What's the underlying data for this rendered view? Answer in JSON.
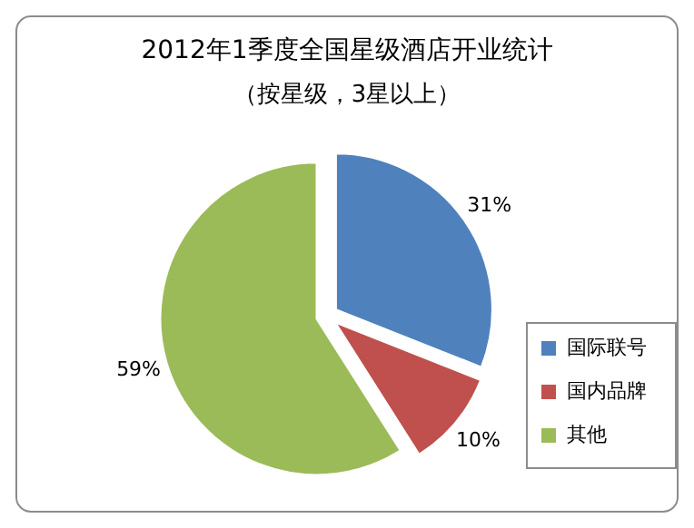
{
  "chart_data": {
    "type": "pie",
    "title": "2012年1季度全国星级酒店开业统计",
    "subtitle": "（按星级，3星以上）",
    "categories": [
      "国际联号",
      "国内品牌",
      "其他"
    ],
    "values": [
      31,
      10,
      59
    ],
    "colors": [
      "#4f81bd",
      "#c0504d",
      "#9bbb59"
    ],
    "value_labels": [
      "31%",
      "10%",
      "59%"
    ],
    "legend": "right"
  }
}
